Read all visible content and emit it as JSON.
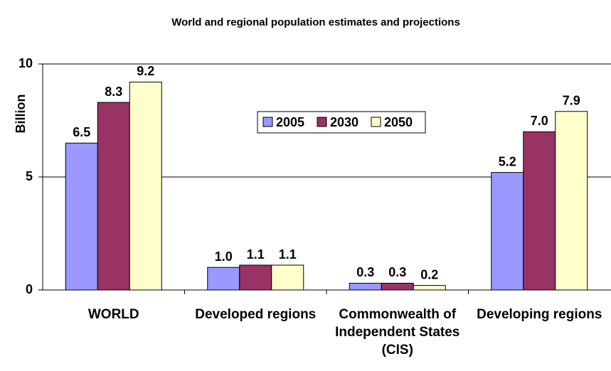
{
  "chart_data": {
    "type": "bar",
    "title": "World and regional population estimates and projections",
    "y_label": "Billion",
    "categories": [
      "WORLD",
      "Developed regions",
      "Commonwealth of Independent States (CIS)",
      "Developing regions"
    ],
    "series": [
      {
        "name": "2005",
        "color": "#9999ff",
        "values": [
          6.5,
          1.0,
          0.3,
          5.2
        ],
        "value_labels": [
          "6.5",
          "1.0",
          "0.3",
          "5.2"
        ]
      },
      {
        "name": "2030",
        "color": "#993366",
        "values": [
          8.3,
          1.1,
          0.3,
          7.0
        ],
        "value_labels": [
          "8.3",
          "1.1",
          "0.3",
          "7.0"
        ]
      },
      {
        "name": "2050",
        "color": "#ffffcc",
        "values": [
          9.2,
          1.1,
          0.2,
          7.9
        ],
        "value_labels": [
          "9.2",
          "1.1",
          "0.2",
          "7.9"
        ]
      }
    ],
    "ylim": [
      0,
      10
    ],
    "yticks": [
      0,
      5,
      10
    ],
    "grid": true,
    "legend": "top-center"
  }
}
